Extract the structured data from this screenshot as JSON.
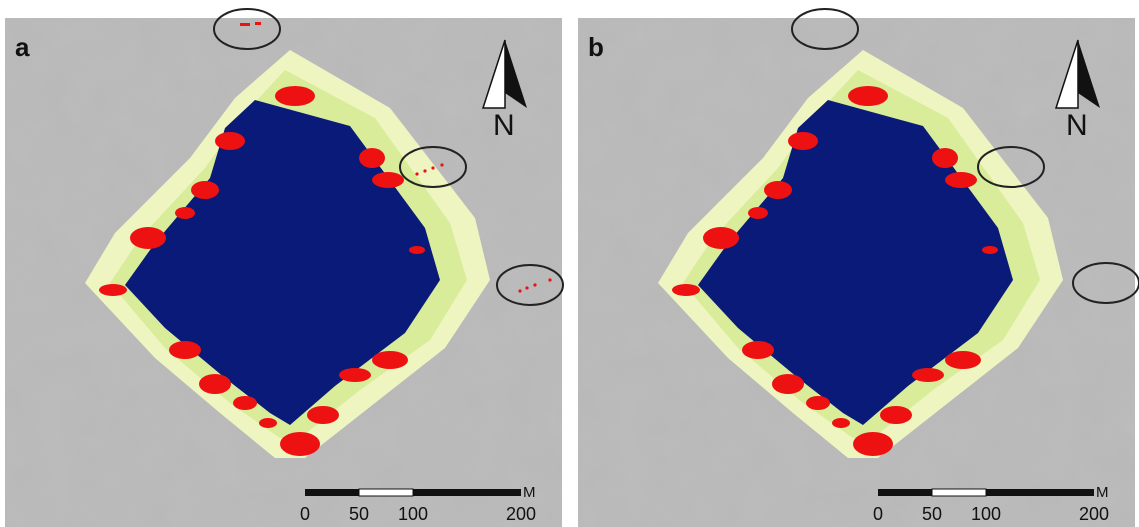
{
  "panels": [
    {
      "label": "a",
      "north": "N",
      "scale_ticks": [
        "0",
        "50",
        "100",
        "200"
      ],
      "scale_unit": "M"
    },
    {
      "label": "b",
      "north": "N",
      "scale_ticks": [
        "0",
        "50",
        "100",
        "200"
      ],
      "scale_unit": "M"
    }
  ]
}
